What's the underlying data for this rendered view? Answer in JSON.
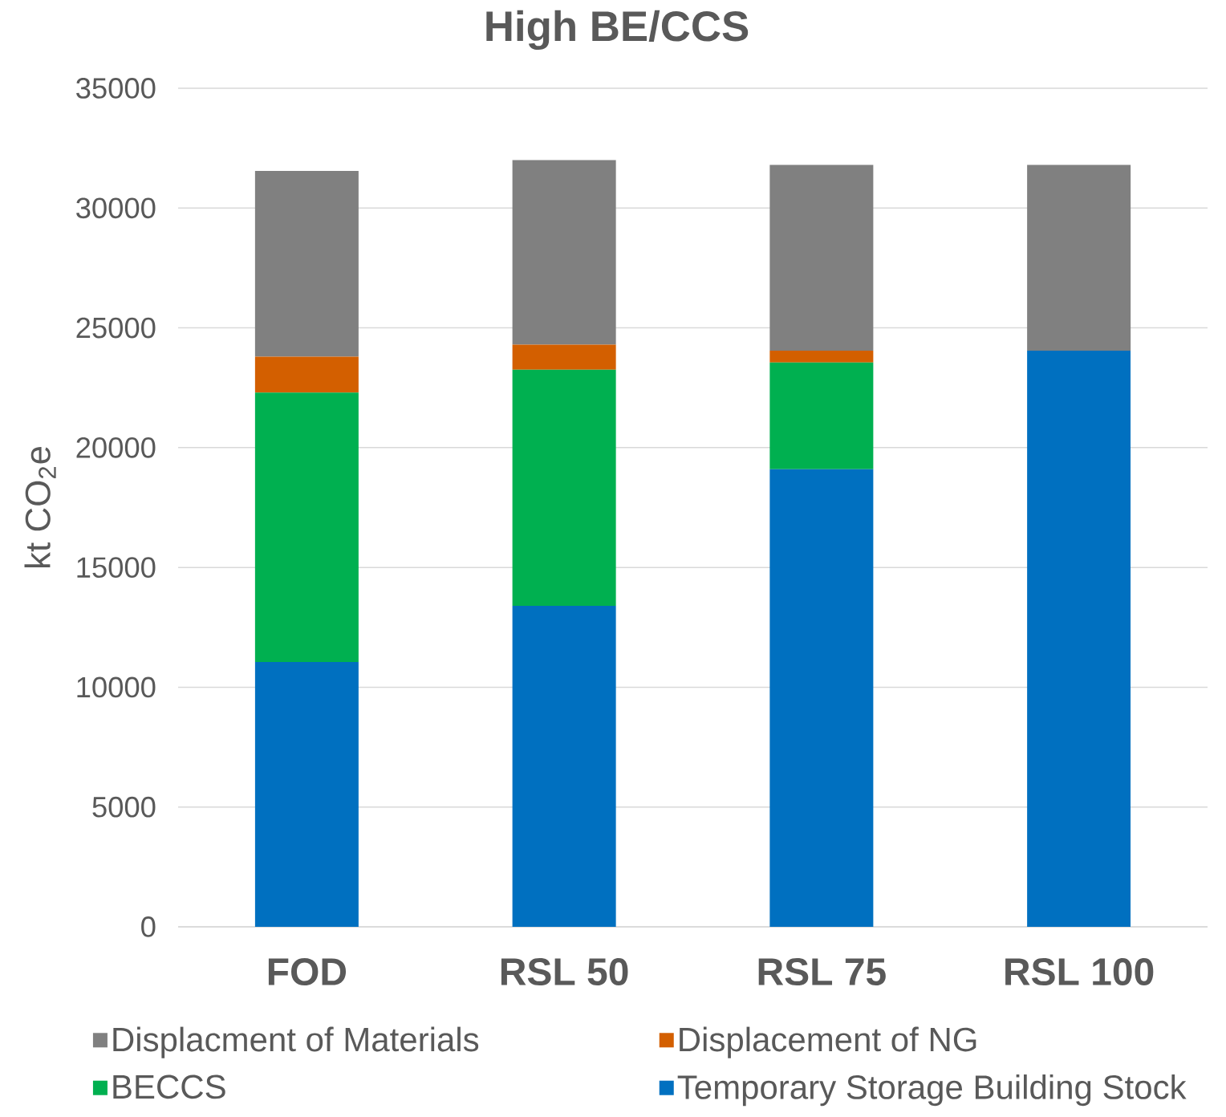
{
  "chart_data": {
    "type": "bar",
    "title": "High BE/CCS",
    "ylabel": "kt CO$_{2}$e",
    "categories": [
      "FOD",
      "RSL 50",
      "RSL 75",
      "RSL 100"
    ],
    "stacked": true,
    "series": [
      {
        "name": "Temporary Storage Building Stock",
        "color": "#0070c0",
        "values": [
          11050,
          13400,
          19100,
          24050
        ]
      },
      {
        "name": "BECCS",
        "color": "#00b050",
        "values": [
          11250,
          9850,
          4450,
          0
        ]
      },
      {
        "name": "Displacement of NG",
        "color": "#d35f00",
        "values": [
          1500,
          1050,
          500,
          0
        ]
      },
      {
        "name": "Displacment of Materials",
        "color": "#808080",
        "values": [
          7750,
          7700,
          7750,
          7750
        ]
      }
    ],
    "ylim": [
      0,
      35000
    ],
    "yticks": [
      0,
      5000,
      10000,
      15000,
      20000,
      25000,
      30000,
      35000
    ],
    "grid": "y",
    "legend": "bottom"
  }
}
